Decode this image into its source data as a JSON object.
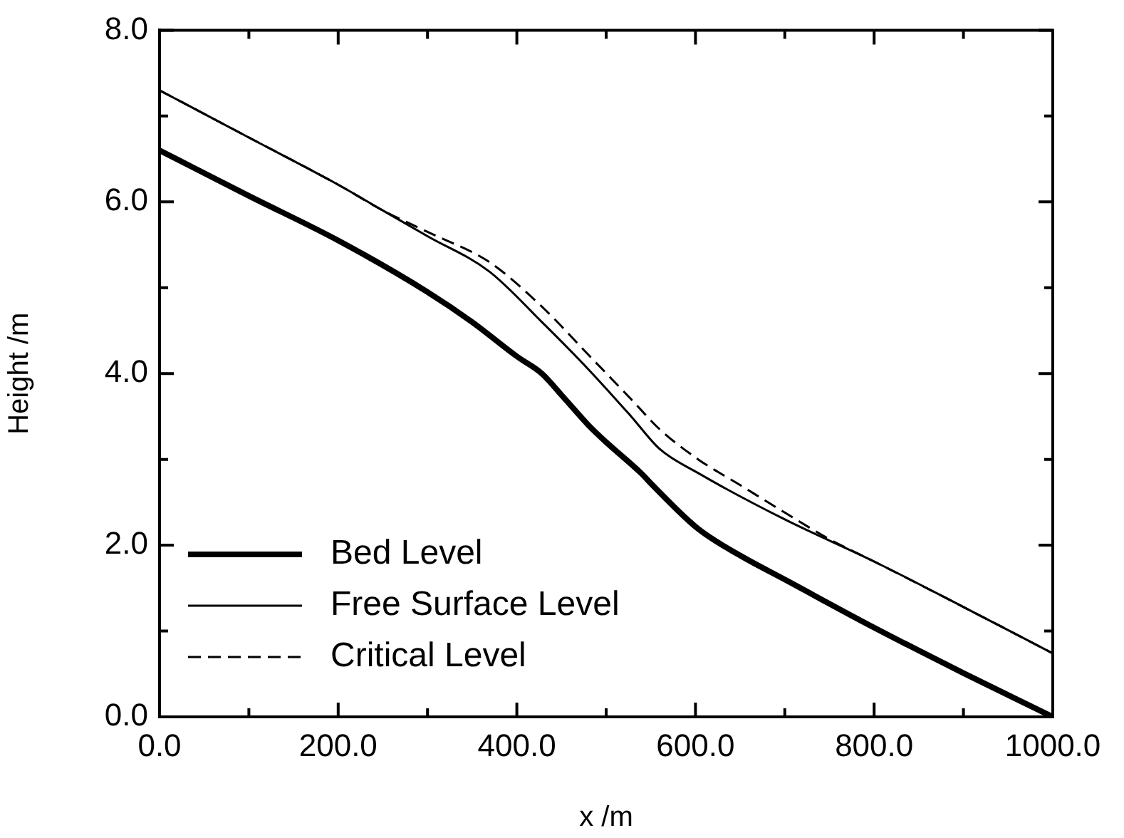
{
  "chart_data": {
    "type": "line",
    "xlabel": "x /m",
    "ylabel": "Height /m",
    "xlim": [
      0,
      1000
    ],
    "ylim": [
      0,
      8
    ],
    "xticks": [
      {
        "value": 0,
        "label": "0.0"
      },
      {
        "value": 100,
        "label": null
      },
      {
        "value": 200,
        "label": "200.0"
      },
      {
        "value": 300,
        "label": null
      },
      {
        "value": 400,
        "label": "400.0"
      },
      {
        "value": 500,
        "label": null
      },
      {
        "value": 600,
        "label": "600.0"
      },
      {
        "value": 700,
        "label": null
      },
      {
        "value": 800,
        "label": "800.0"
      },
      {
        "value": 900,
        "label": null
      },
      {
        "value": 1000,
        "label": "1000.0"
      }
    ],
    "yticks": [
      {
        "value": 0,
        "label": "0.0"
      },
      {
        "value": 1,
        "label": null
      },
      {
        "value": 2,
        "label": "2.0"
      },
      {
        "value": 3,
        "label": null
      },
      {
        "value": 4,
        "label": "4.0"
      },
      {
        "value": 5,
        "label": null
      },
      {
        "value": 6,
        "label": "6.0"
      },
      {
        "value": 7,
        "label": null
      },
      {
        "value": 8,
        "label": "8.0"
      }
    ],
    "legend": "bottom left",
    "grid": false,
    "marker": "none",
    "series": [
      {
        "name": "Bed Level",
        "color": "#000000",
        "line_style": "solid",
        "x": [
          0,
          100,
          200,
          300,
          350,
          400,
          428,
          450,
          480,
          500,
          539,
          550,
          603,
          650,
          700,
          800,
          900,
          1000
        ],
        "values": [
          6.6,
          6.07,
          5.55,
          4.95,
          4.6,
          4.2,
          4.0,
          3.75,
          3.4,
          3.2,
          2.84,
          2.72,
          2.19,
          1.88,
          1.6,
          1.04,
          0.51,
          0
        ]
      },
      {
        "name": "Free Surface Level",
        "color": "#000000",
        "line_style": "solid",
        "x": [
          0,
          100,
          200,
          250,
          300,
          369,
          428,
          480,
          528,
          560,
          603,
          700,
          800,
          900,
          1000
        ],
        "values": [
          7.3,
          6.75,
          6.2,
          5.9,
          5.6,
          5.19,
          4.6,
          4.05,
          3.5,
          3.12,
          2.84,
          2.3,
          1.81,
          1.28,
          0.74
        ]
      },
      {
        "name": "Critical Level",
        "color": "#000000",
        "line_style": "dashed",
        "x": [
          0,
          100,
          200,
          250,
          300,
          369,
          428,
          480,
          528,
          560,
          603,
          650,
          700,
          750,
          800,
          900,
          1000
        ],
        "values": [
          7.3,
          6.75,
          6.2,
          5.9,
          5.65,
          5.3,
          4.78,
          4.22,
          3.7,
          3.35,
          3.0,
          2.7,
          2.38,
          2.07,
          1.81,
          1.28,
          0.74
        ]
      }
    ]
  }
}
